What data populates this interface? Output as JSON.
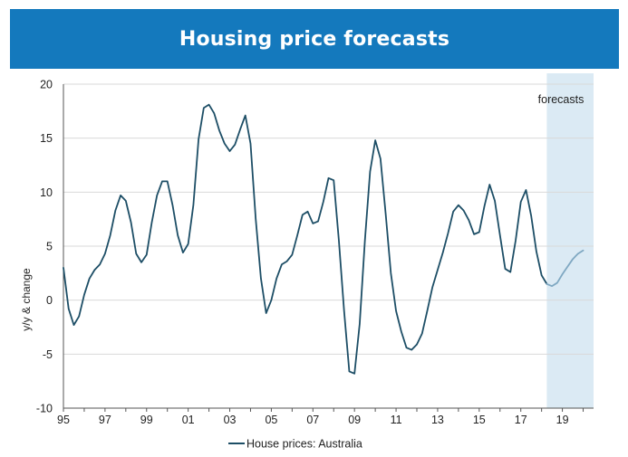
{
  "header": {
    "title": "Housing price forecasts"
  },
  "colors": {
    "banner": "#1479bd",
    "actual_line": "#1d4e66",
    "forecast_line": "#7fa8c2",
    "forecast_shade": "#dbeaf4"
  },
  "chart_data": {
    "type": "line",
    "title": "Housing price forecasts",
    "xlabel": "",
    "ylabel": "y/y & change",
    "xlim": [
      1995,
      2020.5
    ],
    "ylim": [
      -10,
      20
    ],
    "yticks": [
      -10,
      -5,
      0,
      5,
      10,
      15,
      20
    ],
    "xtick_values": [
      1995,
      1997,
      1999,
      2001,
      2003,
      2005,
      2007,
      2009,
      2011,
      2013,
      2015,
      2017,
      2019
    ],
    "xtick_labels": [
      "95",
      "97",
      "99",
      "01",
      "03",
      "05",
      "07",
      "09",
      "11",
      "13",
      "15",
      "17",
      "19"
    ],
    "grid": "horizontal",
    "legend_position": "bottom",
    "forecast_region": {
      "label": "forecasts",
      "start": 2018.25,
      "end": 2020.5
    },
    "series": [
      {
        "name": "House prices: Australia",
        "x": [
          1995.0,
          1995.25,
          1995.5,
          1995.75,
          1996.0,
          1996.25,
          1996.5,
          1996.75,
          1997.0,
          1997.25,
          1997.5,
          1997.75,
          1998.0,
          1998.25,
          1998.5,
          1998.75,
          1999.0,
          1999.25,
          1999.5,
          1999.75,
          2000.0,
          2000.25,
          2000.5,
          2000.75,
          2001.0,
          2001.25,
          2001.5,
          2001.75,
          2002.0,
          2002.25,
          2002.5,
          2002.75,
          2003.0,
          2003.25,
          2003.5,
          2003.75,
          2004.0,
          2004.25,
          2004.5,
          2004.75,
          2005.0,
          2005.25,
          2005.5,
          2005.75,
          2006.0,
          2006.25,
          2006.5,
          2006.75,
          2007.0,
          2007.25,
          2007.5,
          2007.75,
          2008.0,
          2008.25,
          2008.5,
          2008.75,
          2009.0,
          2009.25,
          2009.5,
          2009.75,
          2010.0,
          2010.25,
          2010.5,
          2010.75,
          2011.0,
          2011.25,
          2011.5,
          2011.75,
          2012.0,
          2012.25,
          2012.5,
          2012.75,
          2013.0,
          2013.25,
          2013.5,
          2013.75,
          2014.0,
          2014.25,
          2014.5,
          2014.75,
          2015.0,
          2015.25,
          2015.5,
          2015.75,
          2016.0,
          2016.25,
          2016.5,
          2016.75,
          2017.0,
          2017.25,
          2017.5,
          2017.75,
          2018.0,
          2018.25
        ],
        "values": [
          3.0,
          -0.8,
          -2.3,
          -1.5,
          0.5,
          2.0,
          2.8,
          3.3,
          4.3,
          6.0,
          8.3,
          9.7,
          9.2,
          7.2,
          4.3,
          3.5,
          4.2,
          7.2,
          9.7,
          11.0,
          11.0,
          8.8,
          6.0,
          4.4,
          5.2,
          8.8,
          14.9,
          17.8,
          18.1,
          17.3,
          15.7,
          14.5,
          13.8,
          14.4,
          15.8,
          17.1,
          14.5,
          7.5,
          2.0,
          -1.2,
          0.0,
          2.0,
          3.3,
          3.6,
          4.2,
          6.0,
          7.9,
          8.2,
          7.1,
          7.3,
          9.1,
          11.3,
          11.1,
          5.5,
          -1.0,
          -6.6,
          -6.8,
          -2.2,
          5.5,
          11.9,
          14.8,
          13.1,
          8.0,
          2.5,
          -1.0,
          -2.9,
          -4.4,
          -4.6,
          -4.1,
          -3.1,
          -1.0,
          1.2,
          2.8,
          4.4,
          6.2,
          8.2,
          8.8,
          8.3,
          7.4,
          6.1,
          6.3,
          8.7,
          10.7,
          9.2,
          6.0,
          2.9,
          2.6,
          5.5,
          9.1,
          10.2,
          7.8,
          4.5,
          2.3,
          1.5
        ],
        "color": "#1d4e66"
      },
      {
        "name": "forecast",
        "x": [
          2018.25,
          2018.5,
          2018.75,
          2019.0,
          2019.25,
          2019.5,
          2019.75,
          2020.0
        ],
        "values": [
          1.5,
          1.3,
          1.6,
          2.4,
          3.1,
          3.8,
          4.3,
          4.6
        ],
        "color": "#7fa8c2"
      }
    ]
  },
  "legend": {
    "label": "House prices: Australia"
  }
}
